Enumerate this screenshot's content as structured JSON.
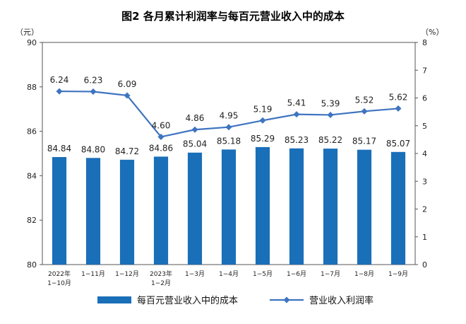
{
  "chart_data": {
    "type": "bar",
    "title": "图2  各月累计利润率与每百元营业收入中的成本",
    "left_unit": "（元）",
    "right_unit": "（%）",
    "categories": [
      [
        "2022年",
        "1−10月"
      ],
      [
        "1−11月"
      ],
      [
        "1−12月"
      ],
      [
        "2023年",
        "1−2月"
      ],
      [
        "1−3月"
      ],
      [
        "1−4月"
      ],
      [
        "1−5月"
      ],
      [
        "1−6月"
      ],
      [
        "1−7月"
      ],
      [
        "1−8月"
      ],
      [
        "1−9月"
      ]
    ],
    "ylim_left": [
      80,
      90
    ],
    "yticks_left": [
      "80",
      "82",
      "84",
      "86",
      "88",
      "90"
    ],
    "ylim_right": [
      0,
      8
    ],
    "yticks_right": [
      "0",
      "1",
      "2",
      "3",
      "4",
      "5",
      "6",
      "7",
      "8"
    ],
    "series": [
      {
        "name": "每百元营业收入中的成本",
        "type": "bar",
        "axis": "left",
        "color": "#1a6fb9",
        "values": [
          84.84,
          84.8,
          84.72,
          84.86,
          85.04,
          85.18,
          85.29,
          85.23,
          85.22,
          85.17,
          85.07
        ],
        "labels": [
          "84.84",
          "84.80",
          "84.72",
          "84.86",
          "85.04",
          "85.18",
          "85.29",
          "85.23",
          "85.22",
          "85.17",
          "85.07"
        ]
      },
      {
        "name": "营业收入利润率",
        "type": "line",
        "axis": "right",
        "color": "#3e74c0",
        "values": [
          6.24,
          6.23,
          6.09,
          4.6,
          4.86,
          4.95,
          5.19,
          5.41,
          5.39,
          5.52,
          5.62
        ],
        "labels": [
          "6.24",
          "6.23",
          "6.09",
          "4.60",
          "4.86",
          "4.95",
          "5.19",
          "5.41",
          "5.39",
          "5.52",
          "5.62"
        ]
      }
    ],
    "legend_position": "bottom"
  }
}
